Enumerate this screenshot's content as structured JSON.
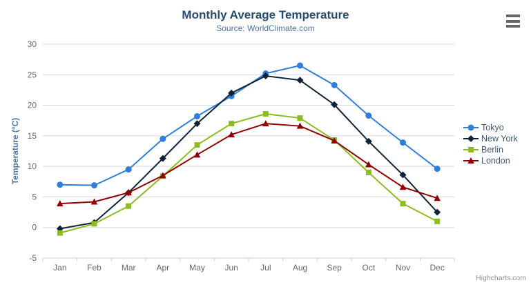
{
  "chart": {
    "title": "Monthly Average Temperature",
    "subtitle": "Source: WorldClimate.com",
    "credits": "Highcharts.com",
    "export_menu_icon": "hamburger-icon"
  },
  "chart_data": {
    "type": "line",
    "title": "Monthly Average Temperature",
    "subtitle": "Source: WorldClimate.com",
    "categories": [
      "Jan",
      "Feb",
      "Mar",
      "Apr",
      "May",
      "Jun",
      "Jul",
      "Aug",
      "Sep",
      "Oct",
      "Nov",
      "Dec"
    ],
    "xlabel": "",
    "ylabel": "Temperature (°C)",
    "ylim": [
      -5,
      30
    ],
    "yticks": [
      -5,
      0,
      5,
      10,
      15,
      20,
      25,
      30
    ],
    "grid": true,
    "legend_position": "right",
    "series": [
      {
        "name": "Tokyo",
        "color": "#2f7ed8",
        "marker": "circle",
        "values": [
          7.0,
          6.9,
          9.5,
          14.5,
          18.2,
          21.5,
          25.2,
          26.5,
          23.3,
          18.3,
          13.9,
          9.6
        ]
      },
      {
        "name": "New York",
        "color": "#0d233a",
        "marker": "diamond",
        "values": [
          -0.2,
          0.8,
          5.7,
          11.3,
          17.0,
          22.0,
          24.8,
          24.1,
          20.1,
          14.1,
          8.6,
          2.5
        ]
      },
      {
        "name": "Berlin",
        "color": "#8bbc21",
        "marker": "square",
        "values": [
          -0.9,
          0.6,
          3.5,
          8.4,
          13.5,
          17.0,
          18.6,
          17.9,
          14.3,
          9.0,
          3.9,
          1.0
        ]
      },
      {
        "name": "London",
        "color": "#910000",
        "marker": "triangle",
        "values": [
          3.9,
          4.2,
          5.7,
          8.5,
          11.9,
          15.2,
          17.0,
          16.6,
          14.2,
          10.3,
          6.6,
          4.8
        ]
      }
    ]
  },
  "colors": {
    "title": "#274b6d",
    "subtitle": "#4d759e",
    "axis_title": "#4d759e",
    "axis_labels": "#666666",
    "gridline": "#d8d8d8",
    "axis_line": "#c0d0e0",
    "legend_text": "#3e576f",
    "credits": "#909090",
    "background": "#ffffff"
  }
}
